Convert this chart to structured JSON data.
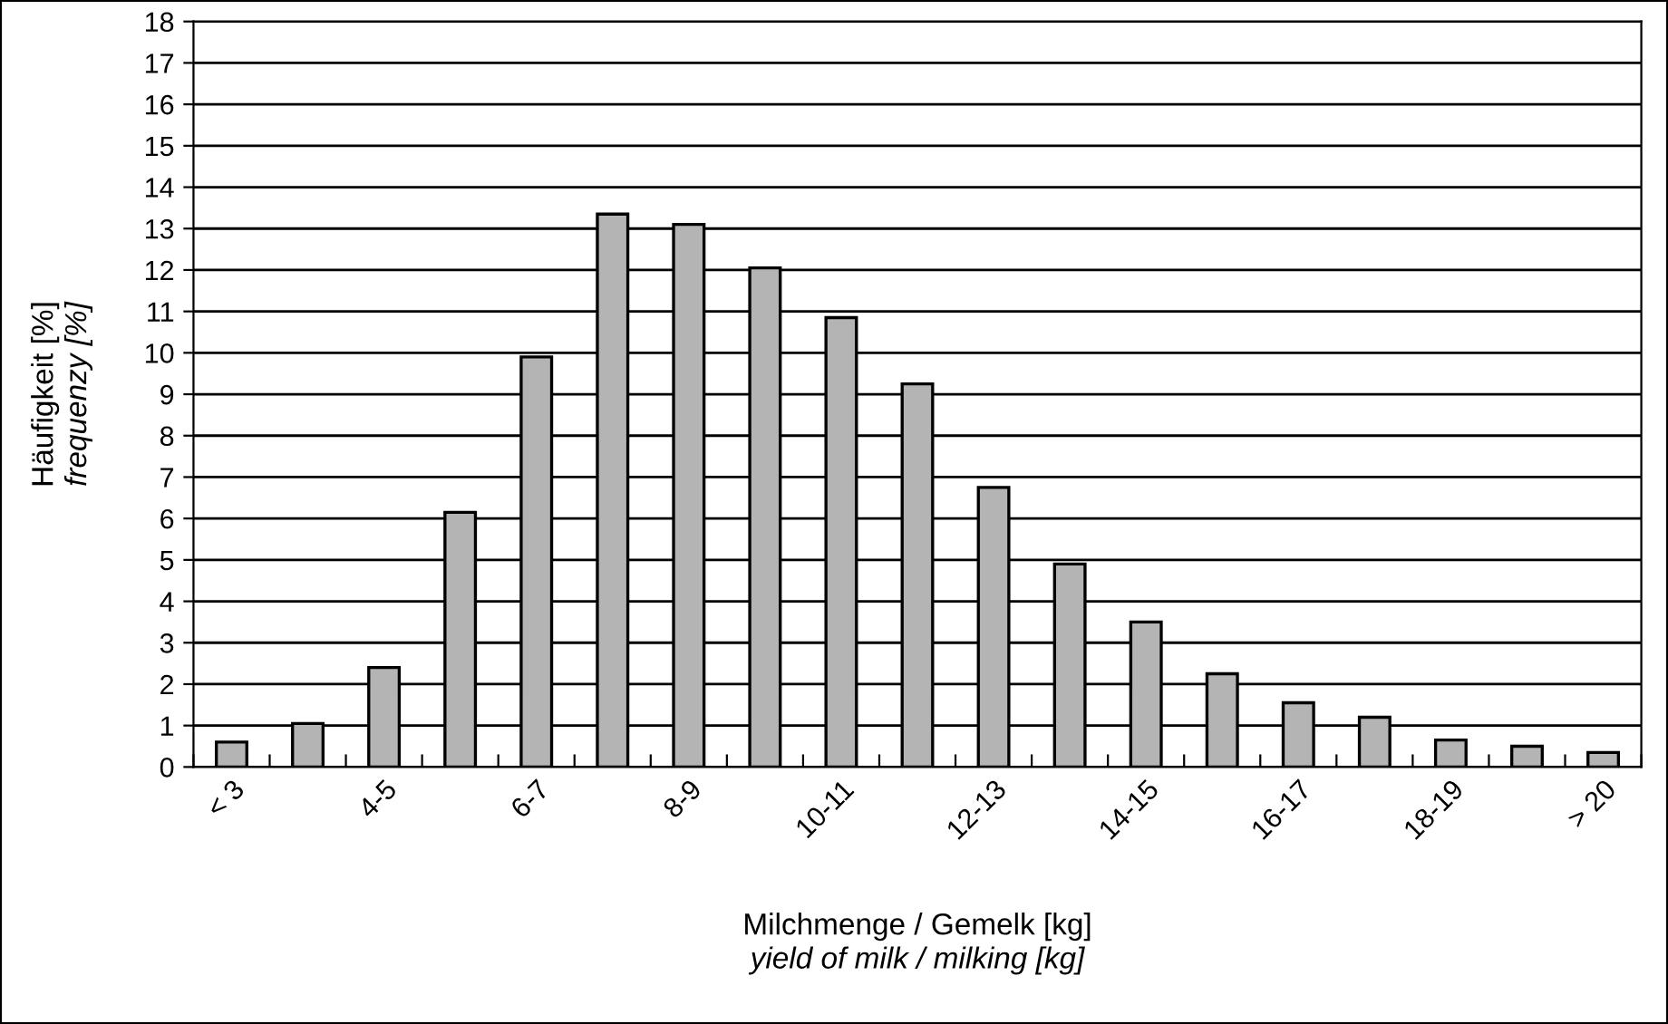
{
  "chart_data": {
    "type": "bar",
    "xlabel": "Milchmenge / Gemelk [kg]\nyield of milk / milking [kg]",
    "ylabel": "Häufigkeit [%]\nfrequenzy [%]",
    "categories": [
      "< 3",
      null,
      "4-5",
      null,
      "6-7",
      null,
      "8-9",
      null,
      "10-11",
      null,
      "12-13",
      null,
      "14-15",
      null,
      "16-17",
      null,
      "18-19",
      null,
      "> 20"
    ],
    "values": [
      0.6,
      1.05,
      2.4,
      6.15,
      9.9,
      13.35,
      13.1,
      12.05,
      10.85,
      9.25,
      6.75,
      4.9,
      3.5,
      2.25,
      1.55,
      1.2,
      0.65,
      0.5,
      0.35
    ],
    "color": "#b4b4b4",
    "ylim": [
      0,
      18
    ],
    "yticks": [
      0,
      1,
      2,
      3,
      4,
      5,
      6,
      7,
      8,
      9,
      10,
      11,
      12,
      13,
      14,
      15,
      16,
      17,
      18
    ],
    "grid": "y",
    "legend": false
  }
}
